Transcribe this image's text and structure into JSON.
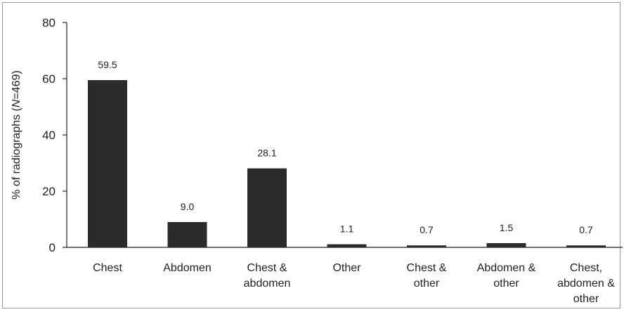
{
  "chart_data": {
    "type": "bar",
    "title": "",
    "xlabel": "",
    "ylabel_prefix": "% of radiographs (",
    "ylabel_n": "N",
    "ylabel_suffix": "=469)",
    "ylim": [
      0,
      80
    ],
    "yticks": [
      "0",
      "20",
      "40",
      "60",
      "80"
    ],
    "grid": false,
    "categories": [
      [
        "Chest"
      ],
      [
        "Abdomen"
      ],
      [
        "Chest &",
        "abdomen"
      ],
      [
        "Other"
      ],
      [
        "Chest &",
        "other"
      ],
      [
        "Abdomen &",
        "other"
      ],
      [
        "Chest,",
        "abdomen &",
        "other"
      ]
    ],
    "values": [
      59.5,
      9.0,
      28.1,
      1.1,
      0.7,
      1.5,
      0.7
    ],
    "value_labels": [
      "59.5",
      "9.0",
      "28.1",
      "1.1",
      "0.7",
      "1.5",
      "0.7"
    ],
    "bar_color": "#2b2b2b"
  }
}
